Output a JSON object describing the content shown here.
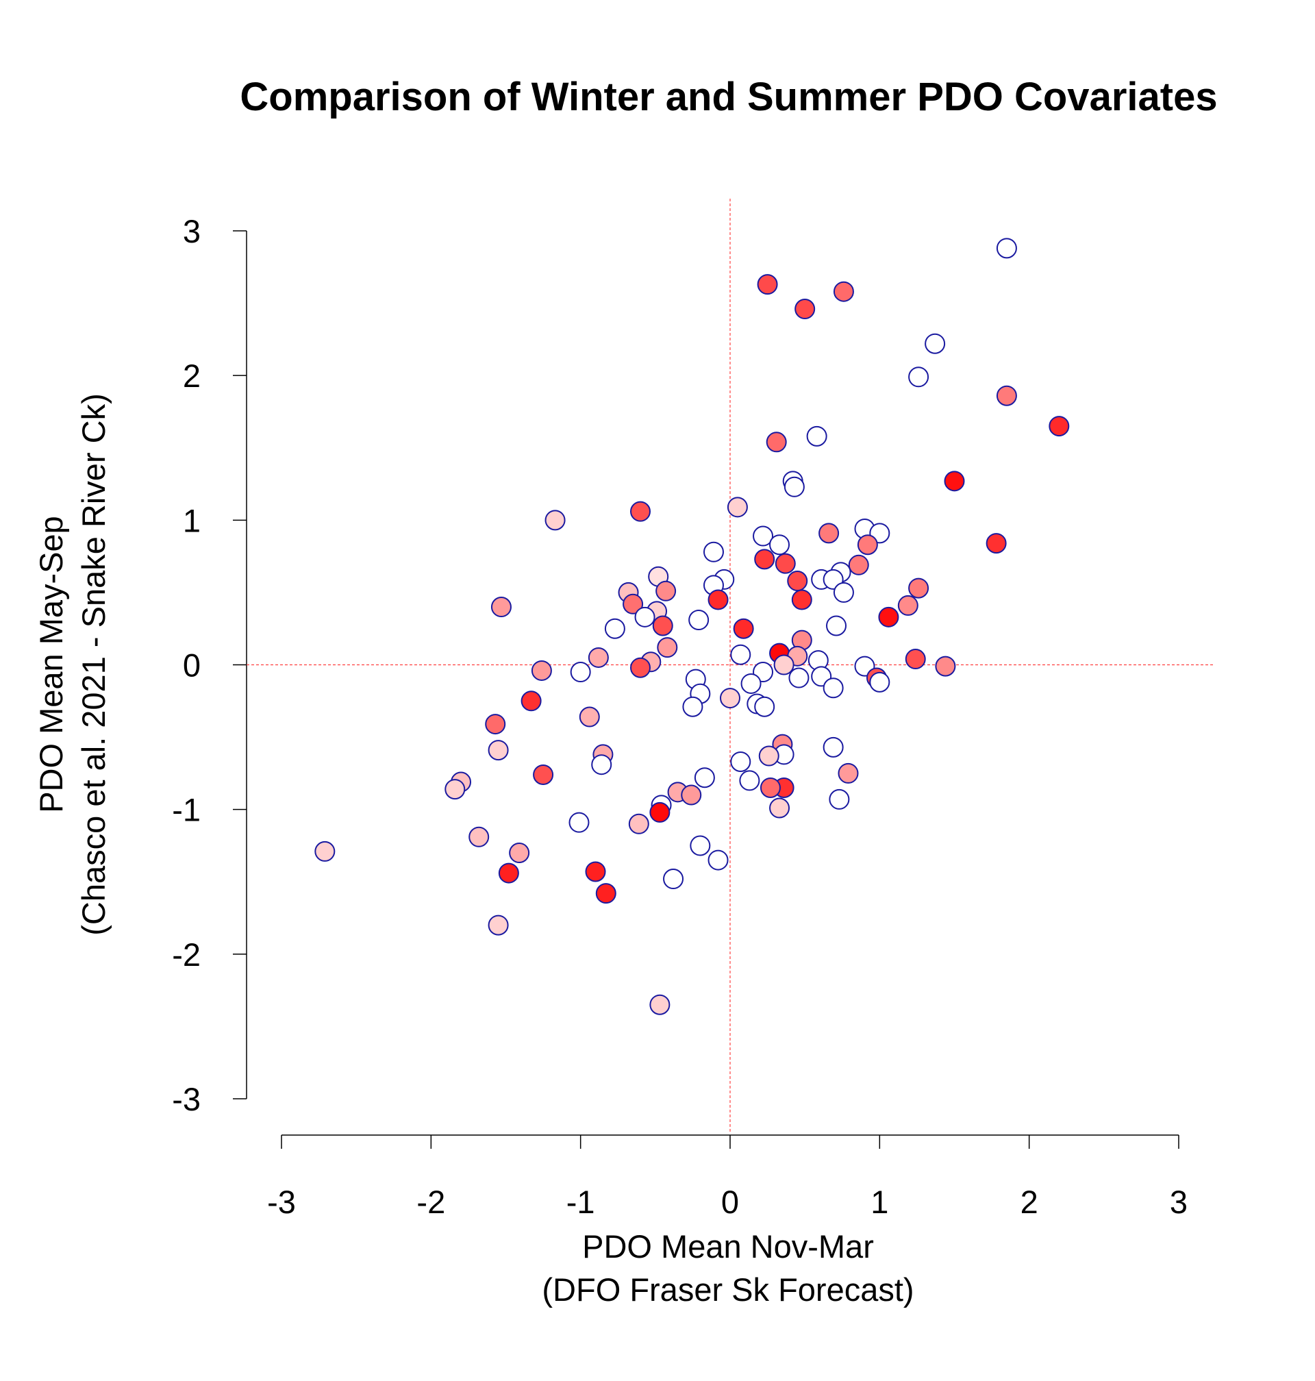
{
  "chart_data": {
    "type": "scatter",
    "title": "Comparison of Winter and Summer PDO Covariates",
    "xlabel": [
      "PDO Mean Nov-Mar",
      "(DFO Fraser Sk Forecast)"
    ],
    "ylabel": [
      "PDO Mean May-Sep",
      "(Chasco et al. 2021 - Snake River Ck)"
    ],
    "xlim": [
      -3,
      3
    ],
    "ylim": [
      -3,
      3
    ],
    "x_ticks": [
      -3,
      -2,
      -1,
      0,
      1,
      2,
      3
    ],
    "y_ticks": [
      -3,
      -2,
      -1,
      0,
      1,
      2,
      3
    ],
    "x_tick_labels": [
      "-3",
      "-2",
      "-1",
      "0",
      "1",
      "2",
      "3"
    ],
    "y_tick_labels": [
      "-3",
      "-2",
      "-1",
      "0",
      "1",
      "2",
      "3"
    ],
    "reference_lines": {
      "x": 0,
      "y": 0,
      "color": "#ff0000",
      "style": "dashed"
    },
    "marker_outline_color": "#1a1aa0",
    "fill_scale": "white to red",
    "points": [
      {
        "x": 1.85,
        "y": 2.88,
        "fill": "#ffffff"
      },
      {
        "x": 0.25,
        "y": 2.63,
        "fill": "#ff4a4a"
      },
      {
        "x": 0.76,
        "y": 2.58,
        "fill": "#ff6a6a"
      },
      {
        "x": 0.5,
        "y": 2.46,
        "fill": "#ff4a4a"
      },
      {
        "x": 1.37,
        "y": 2.22,
        "fill": "#ffffff"
      },
      {
        "x": 1.26,
        "y": 1.99,
        "fill": "#ffffff"
      },
      {
        "x": 1.85,
        "y": 1.86,
        "fill": "#ff7a7a"
      },
      {
        "x": 2.2,
        "y": 1.65,
        "fill": "#ff2a2a"
      },
      {
        "x": 0.58,
        "y": 1.58,
        "fill": "#ffffff"
      },
      {
        "x": 0.31,
        "y": 1.54,
        "fill": "#ff6a6a"
      },
      {
        "x": 1.5,
        "y": 1.27,
        "fill": "#ff1010"
      },
      {
        "x": 0.42,
        "y": 1.27,
        "fill": "#ffffff"
      },
      {
        "x": 0.43,
        "y": 1.23,
        "fill": "#ffffff"
      },
      {
        "x": 0.05,
        "y": 1.09,
        "fill": "#ffd0d0"
      },
      {
        "x": -0.6,
        "y": 1.06,
        "fill": "#ff5050"
      },
      {
        "x": -1.17,
        "y": 1.0,
        "fill": "#ffd0d0"
      },
      {
        "x": 0.9,
        "y": 0.94,
        "fill": "#ffffff"
      },
      {
        "x": 1.0,
        "y": 0.91,
        "fill": "#ffffff"
      },
      {
        "x": 0.66,
        "y": 0.91,
        "fill": "#ff7a7a"
      },
      {
        "x": 0.22,
        "y": 0.89,
        "fill": "#ffffff"
      },
      {
        "x": 1.78,
        "y": 0.84,
        "fill": "#ff3030"
      },
      {
        "x": 0.92,
        "y": 0.83,
        "fill": "#ff7a7a"
      },
      {
        "x": 0.33,
        "y": 0.83,
        "fill": "#ffffff"
      },
      {
        "x": -0.11,
        "y": 0.78,
        "fill": "#ffffff"
      },
      {
        "x": 0.23,
        "y": 0.73,
        "fill": "#ff3a3a"
      },
      {
        "x": 0.37,
        "y": 0.7,
        "fill": "#ff4a4a"
      },
      {
        "x": 0.86,
        "y": 0.69,
        "fill": "#ff7a7a"
      },
      {
        "x": 0.74,
        "y": 0.64,
        "fill": "#ffffff"
      },
      {
        "x": -0.48,
        "y": 0.61,
        "fill": "#ffe0e0"
      },
      {
        "x": 0.61,
        "y": 0.59,
        "fill": "#ffffff"
      },
      {
        "x": 0.69,
        "y": 0.59,
        "fill": "#ffffff"
      },
      {
        "x": -0.04,
        "y": 0.59,
        "fill": "#ffffff"
      },
      {
        "x": 0.45,
        "y": 0.58,
        "fill": "#ff4a4a"
      },
      {
        "x": -0.11,
        "y": 0.55,
        "fill": "#ffffff"
      },
      {
        "x": 1.26,
        "y": 0.53,
        "fill": "#ff7a7a"
      },
      {
        "x": 0.76,
        "y": 0.5,
        "fill": "#ffffff"
      },
      {
        "x": -0.43,
        "y": 0.51,
        "fill": "#ff8a8a"
      },
      {
        "x": -0.68,
        "y": 0.5,
        "fill": "#ffc0c0"
      },
      {
        "x": -0.08,
        "y": 0.45,
        "fill": "#ff2a2a"
      },
      {
        "x": 0.48,
        "y": 0.45,
        "fill": "#ff3030"
      },
      {
        "x": -0.65,
        "y": 0.42,
        "fill": "#ff7070"
      },
      {
        "x": 1.19,
        "y": 0.41,
        "fill": "#ff8a8a"
      },
      {
        "x": -1.53,
        "y": 0.4,
        "fill": "#ff9a9a"
      },
      {
        "x": -0.49,
        "y": 0.37,
        "fill": "#ffd0d0"
      },
      {
        "x": -0.57,
        "y": 0.33,
        "fill": "#ffffff"
      },
      {
        "x": 1.06,
        "y": 0.33,
        "fill": "#ff1010"
      },
      {
        "x": -0.21,
        "y": 0.31,
        "fill": "#ffffff"
      },
      {
        "x": -0.45,
        "y": 0.27,
        "fill": "#ff5050"
      },
      {
        "x": 0.71,
        "y": 0.27,
        "fill": "#ffffff"
      },
      {
        "x": 0.09,
        "y": 0.25,
        "fill": "#ff2a2a"
      },
      {
        "x": -0.77,
        "y": 0.25,
        "fill": "#ffffff"
      },
      {
        "x": 0.48,
        "y": 0.17,
        "fill": "#ff8a8a"
      },
      {
        "x": -0.42,
        "y": 0.12,
        "fill": "#ff9a9a"
      },
      {
        "x": 0.33,
        "y": 0.08,
        "fill": "#ff0a0a"
      },
      {
        "x": 0.07,
        "y": 0.07,
        "fill": "#ffffff"
      },
      {
        "x": 0.45,
        "y": 0.06,
        "fill": "#ffaaaa"
      },
      {
        "x": -0.88,
        "y": 0.05,
        "fill": "#ffaaaa"
      },
      {
        "x": 1.24,
        "y": 0.04,
        "fill": "#ff5050"
      },
      {
        "x": 0.59,
        "y": 0.03,
        "fill": "#ffffff"
      },
      {
        "x": -0.53,
        "y": 0.02,
        "fill": "#ffb0b0"
      },
      {
        "x": 0.36,
        "y": 0.0,
        "fill": "#ffd0d0"
      },
      {
        "x": 1.44,
        "y": -0.01,
        "fill": "#ff8a8a"
      },
      {
        "x": 0.9,
        "y": -0.01,
        "fill": "#ffffff"
      },
      {
        "x": -0.6,
        "y": -0.02,
        "fill": "#ff5050"
      },
      {
        "x": -1.26,
        "y": -0.04,
        "fill": "#ff9a9a"
      },
      {
        "x": 0.22,
        "y": -0.05,
        "fill": "#ffffff"
      },
      {
        "x": -1.0,
        "y": -0.05,
        "fill": "#ffffff"
      },
      {
        "x": 0.61,
        "y": -0.08,
        "fill": "#ffffff"
      },
      {
        "x": 0.98,
        "y": -0.09,
        "fill": "#ff5050"
      },
      {
        "x": 0.46,
        "y": -0.09,
        "fill": "#ffffff"
      },
      {
        "x": -0.23,
        "y": -0.1,
        "fill": "#ffffff"
      },
      {
        "x": 1.0,
        "y": -0.12,
        "fill": "#ffffff"
      },
      {
        "x": 0.14,
        "y": -0.13,
        "fill": "#ffffff"
      },
      {
        "x": 0.69,
        "y": -0.16,
        "fill": "#ffffff"
      },
      {
        "x": -0.2,
        "y": -0.2,
        "fill": "#ffffff"
      },
      {
        "x": 0.0,
        "y": -0.23,
        "fill": "#ffd0d0"
      },
      {
        "x": -1.33,
        "y": -0.25,
        "fill": "#ff3030"
      },
      {
        "x": 0.18,
        "y": -0.27,
        "fill": "#ffffff"
      },
      {
        "x": 0.23,
        "y": -0.29,
        "fill": "#ffffff"
      },
      {
        "x": -0.25,
        "y": -0.29,
        "fill": "#ffffff"
      },
      {
        "x": -0.94,
        "y": -0.36,
        "fill": "#ffb0b0"
      },
      {
        "x": -1.57,
        "y": -0.41,
        "fill": "#ff6a6a"
      },
      {
        "x": 0.35,
        "y": -0.55,
        "fill": "#ff8a8a"
      },
      {
        "x": 0.69,
        "y": -0.57,
        "fill": "#ffffff"
      },
      {
        "x": -1.55,
        "y": -0.59,
        "fill": "#ffd0d0"
      },
      {
        "x": 0.36,
        "y": -0.62,
        "fill": "#ffffff"
      },
      {
        "x": -0.85,
        "y": -0.62,
        "fill": "#ffaaaa"
      },
      {
        "x": 0.26,
        "y": -0.63,
        "fill": "#ffd0d0"
      },
      {
        "x": 0.07,
        "y": -0.67,
        "fill": "#ffffff"
      },
      {
        "x": -0.86,
        "y": -0.69,
        "fill": "#ffffff"
      },
      {
        "x": 0.79,
        "y": -0.75,
        "fill": "#ff9a9a"
      },
      {
        "x": -1.25,
        "y": -0.76,
        "fill": "#ff5050"
      },
      {
        "x": -0.17,
        "y": -0.78,
        "fill": "#ffffff"
      },
      {
        "x": 0.13,
        "y": -0.8,
        "fill": "#ffffff"
      },
      {
        "x": -1.8,
        "y": -0.81,
        "fill": "#ffc0c0"
      },
      {
        "x": 0.36,
        "y": -0.85,
        "fill": "#ff3030"
      },
      {
        "x": 0.27,
        "y": -0.85,
        "fill": "#ff6a6a"
      },
      {
        "x": -1.84,
        "y": -0.86,
        "fill": "#ffd0d0"
      },
      {
        "x": -0.35,
        "y": -0.88,
        "fill": "#ffaaaa"
      },
      {
        "x": -0.26,
        "y": -0.9,
        "fill": "#ff9a9a"
      },
      {
        "x": 0.73,
        "y": -0.93,
        "fill": "#ffffff"
      },
      {
        "x": -0.46,
        "y": -0.97,
        "fill": "#ffffff"
      },
      {
        "x": 0.33,
        "y": -0.99,
        "fill": "#ffd0d0"
      },
      {
        "x": -0.47,
        "y": -1.02,
        "fill": "#ff0a0a"
      },
      {
        "x": -1.01,
        "y": -1.09,
        "fill": "#ffffff"
      },
      {
        "x": -0.61,
        "y": -1.1,
        "fill": "#ffc0c0"
      },
      {
        "x": -1.68,
        "y": -1.19,
        "fill": "#ffc0c0"
      },
      {
        "x": -0.2,
        "y": -1.25,
        "fill": "#ffffff"
      },
      {
        "x": -2.71,
        "y": -1.29,
        "fill": "#ffd0d0"
      },
      {
        "x": -1.41,
        "y": -1.3,
        "fill": "#ffaaaa"
      },
      {
        "x": -0.08,
        "y": -1.35,
        "fill": "#ffffff"
      },
      {
        "x": -1.48,
        "y": -1.44,
        "fill": "#ff2020"
      },
      {
        "x": -0.9,
        "y": -1.43,
        "fill": "#ff2020"
      },
      {
        "x": -0.38,
        "y": -1.48,
        "fill": "#ffffff"
      },
      {
        "x": -0.83,
        "y": -1.58,
        "fill": "#ff2020"
      },
      {
        "x": -1.55,
        "y": -1.8,
        "fill": "#ffd0d0"
      },
      {
        "x": -0.47,
        "y": -2.35,
        "fill": "#ffd0d0"
      }
    ]
  }
}
